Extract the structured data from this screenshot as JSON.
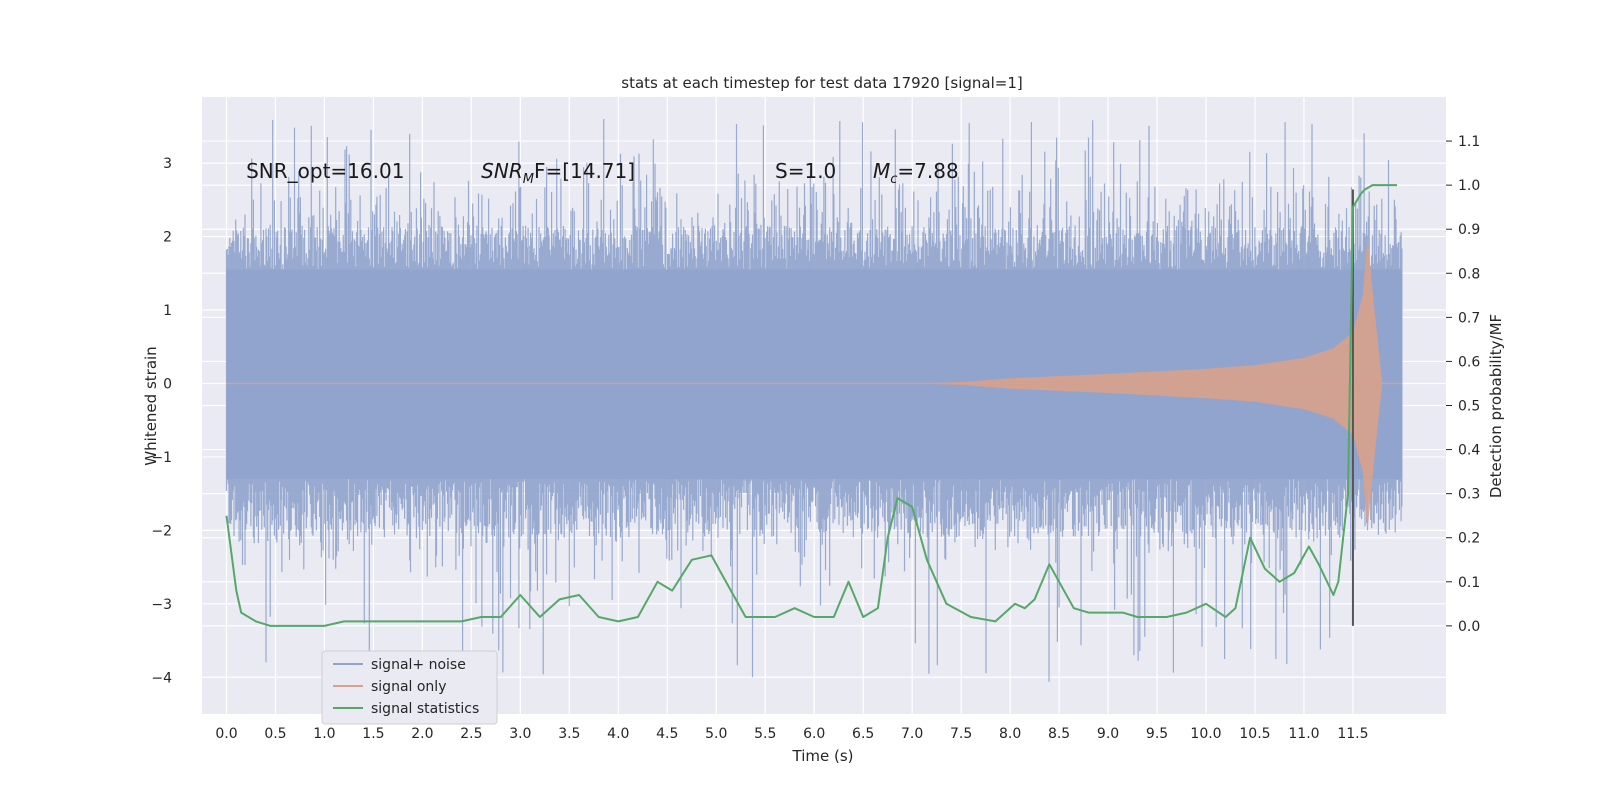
{
  "chart_data": {
    "type": "line",
    "title": "stats at each timestep for test data 17920 [signal=1]",
    "xlabel": "Time (s)",
    "ylabel": "Whitened strain",
    "y2label": "Detection probability/MF",
    "xlim": [
      -0.25,
      12.45
    ],
    "ylim": [
      -4.5,
      3.9
    ],
    "y2lim": [
      -0.2,
      1.2
    ],
    "x_ticks": [
      0.0,
      0.5,
      1.0,
      1.5,
      2.0,
      2.5,
      3.0,
      3.5,
      4.0,
      4.5,
      5.0,
      5.5,
      6.0,
      6.5,
      7.0,
      7.5,
      8.0,
      8.5,
      9.0,
      9.5,
      10.0,
      10.5,
      11.0,
      11.5
    ],
    "x_tick_labels": [
      "0.0",
      "0.5",
      "1.0",
      "1.5",
      "2.0",
      "2.5",
      "3.0",
      "3.5",
      "4.0",
      "4.5",
      "5.0",
      "5.5",
      "6.0",
      "6.5",
      "7.0",
      "7.5",
      "8.0",
      "8.5",
      "9.0",
      "9.5",
      "10.0",
      "10.5",
      "11.0",
      "11.5"
    ],
    "y_ticks": [
      3,
      2,
      1,
      0,
      -1,
      -2,
      -3,
      -4
    ],
    "y_tick_labels": [
      "3",
      "2",
      "1",
      "0",
      "−1",
      "−2",
      "−3",
      "−4"
    ],
    "y2_ticks": [
      1.1,
      1.0,
      0.9,
      0.8,
      0.7,
      0.6,
      0.5,
      0.4,
      0.3,
      0.2,
      0.1,
      0.0
    ],
    "y2_tick_labels": [
      "1.1",
      "1.0",
      "0.9",
      "0.8",
      "0.7",
      "0.6",
      "0.5",
      "0.4",
      "0.3",
      "0.2",
      "0.1",
      "0.0"
    ],
    "grid": true,
    "legend_position": "lower-left",
    "colors": {
      "signal_noise": "#8fa3cc",
      "signal_only": "#d9a08a",
      "signal_statistics": "#55a868",
      "marker_line": "#555555",
      "background": "#eaeaf2"
    },
    "annotations": [
      {
        "kind": "plain",
        "text": "SNR_opt=16.01",
        "x": 0.2,
        "y": 2.8
      },
      {
        "kind": "snrmf",
        "main": "SNR",
        "sub": "M",
        "rest": "F=[14.71]",
        "x": 2.6,
        "y": 2.8
      },
      {
        "kind": "plain",
        "text": "S=1.0",
        "x": 5.6,
        "y": 2.8
      },
      {
        "kind": "mc",
        "main": "M",
        "sub": "c",
        "rest": "=7.88",
        "x": 6.6,
        "y": 2.8
      }
    ],
    "marker_x": 11.5,
    "series": [
      {
        "name": "signal+ noise",
        "kind": "noise_band",
        "x_range": [
          0.0,
          12.0
        ],
        "inner_band": [
          -1.3,
          1.55
        ],
        "max_spike": 3.6,
        "min_spike": -4.1
      },
      {
        "name": "signal only",
        "kind": "chirp",
        "x_range": [
          0.0,
          12.0
        ],
        "envelope_x": [
          0.0,
          7.0,
          7.5,
          8.0,
          9.0,
          10.0,
          10.5,
          11.0,
          11.3,
          11.5,
          11.6,
          11.65,
          11.72,
          11.8,
          12.0
        ],
        "envelope": [
          0.0,
          0.0,
          0.02,
          0.07,
          0.13,
          0.2,
          0.25,
          0.35,
          0.48,
          0.7,
          1.2,
          2.0,
          1.0,
          0.0,
          0.0
        ]
      },
      {
        "name": "signal statistics",
        "kind": "curve",
        "axis": "right",
        "x": [
          0.0,
          0.1,
          0.15,
          0.3,
          0.45,
          0.6,
          0.8,
          1.0,
          1.2,
          1.4,
          1.6,
          1.8,
          2.0,
          2.2,
          2.4,
          2.6,
          2.8,
          3.0,
          3.2,
          3.4,
          3.6,
          3.8,
          4.0,
          4.2,
          4.4,
          4.55,
          4.75,
          4.95,
          5.05,
          5.3,
          5.6,
          5.8,
          6.0,
          6.2,
          6.35,
          6.5,
          6.65,
          6.75,
          6.85,
          7.0,
          7.15,
          7.35,
          7.6,
          7.85,
          8.05,
          8.15,
          8.25,
          8.4,
          8.5,
          8.65,
          8.8,
          9.0,
          9.15,
          9.3,
          9.45,
          9.6,
          9.8,
          10.0,
          10.2,
          10.3,
          10.45,
          10.6,
          10.75,
          10.9,
          11.05,
          11.15,
          11.3,
          11.35,
          11.45,
          11.5,
          11.58,
          11.62,
          11.7,
          11.8,
          11.95
        ],
        "y": [
          0.25,
          0.08,
          0.03,
          0.01,
          0.0,
          0.0,
          0.0,
          0.0,
          0.01,
          0.01,
          0.01,
          0.01,
          0.01,
          0.01,
          0.01,
          0.02,
          0.02,
          0.07,
          0.02,
          0.06,
          0.07,
          0.02,
          0.01,
          0.02,
          0.1,
          0.08,
          0.15,
          0.16,
          0.12,
          0.02,
          0.02,
          0.04,
          0.02,
          0.02,
          0.1,
          0.02,
          0.04,
          0.2,
          0.29,
          0.27,
          0.15,
          0.05,
          0.02,
          0.01,
          0.05,
          0.04,
          0.06,
          0.14,
          0.1,
          0.04,
          0.03,
          0.03,
          0.03,
          0.02,
          0.02,
          0.02,
          0.03,
          0.05,
          0.02,
          0.04,
          0.2,
          0.13,
          0.1,
          0.12,
          0.18,
          0.14,
          0.07,
          0.1,
          0.3,
          0.95,
          0.98,
          0.99,
          1.0,
          1.0,
          1.0
        ]
      }
    ]
  }
}
